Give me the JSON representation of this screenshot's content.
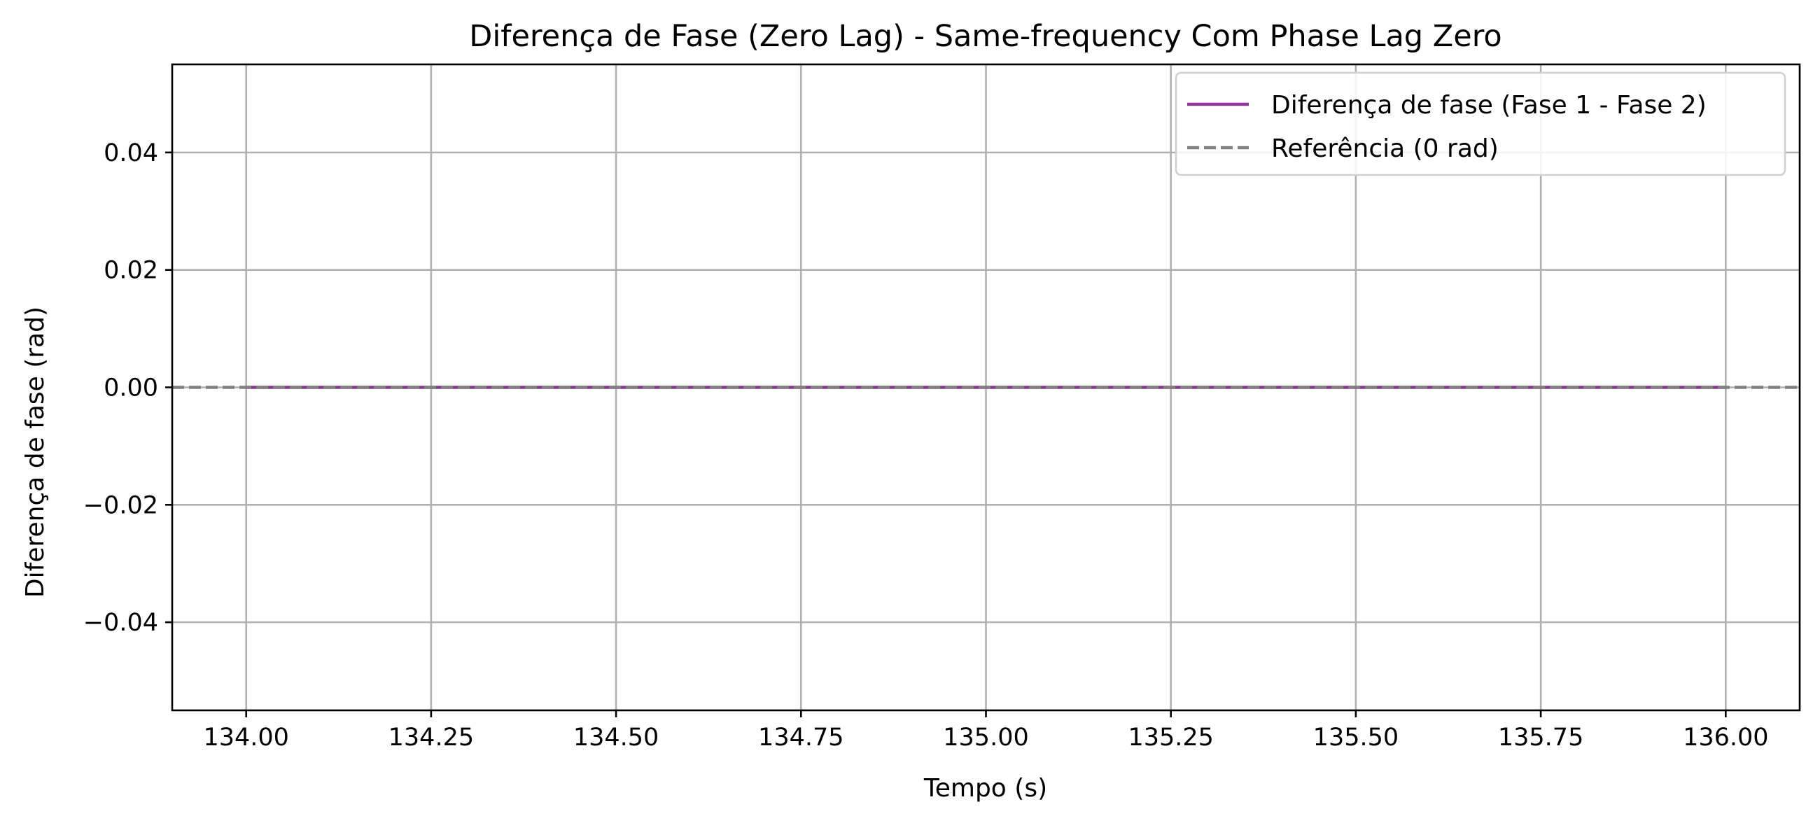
{
  "chart_data": {
    "type": "line",
    "title": "Diferença de Fase (Zero Lag) - Same-frequency Com Phase Lag Zero",
    "xlabel": "Tempo (s)",
    "ylabel": "Diferença de fase (rad)",
    "xlim": [
      133.9,
      136.1
    ],
    "ylim": [
      -0.055,
      0.055
    ],
    "xticks": [
      134.0,
      134.25,
      134.5,
      134.75,
      135.0,
      135.25,
      135.5,
      135.75,
      136.0
    ],
    "xtick_labels": [
      "134.00",
      "134.25",
      "134.50",
      "134.75",
      "135.00",
      "135.25",
      "135.50",
      "135.75",
      "136.00"
    ],
    "yticks": [
      -0.04,
      -0.02,
      0.0,
      0.02,
      0.04
    ],
    "ytick_labels": [
      "−0.04",
      "−0.02",
      "0.00",
      "0.02",
      "0.04"
    ],
    "grid": true,
    "legend_position": "top-right",
    "series": [
      {
        "name": "Diferença de fase (Fase 1 - Fase 2)",
        "color": "#8e3599",
        "style": "solid",
        "x": [
          134.0,
          134.5,
          135.0,
          135.5,
          136.0
        ],
        "y": [
          0.0,
          0.0,
          0.0,
          0.0,
          0.0
        ]
      },
      {
        "name": "Referência (0 rad)",
        "color": "#808080",
        "style": "dashed",
        "hline": 0.0
      }
    ]
  }
}
